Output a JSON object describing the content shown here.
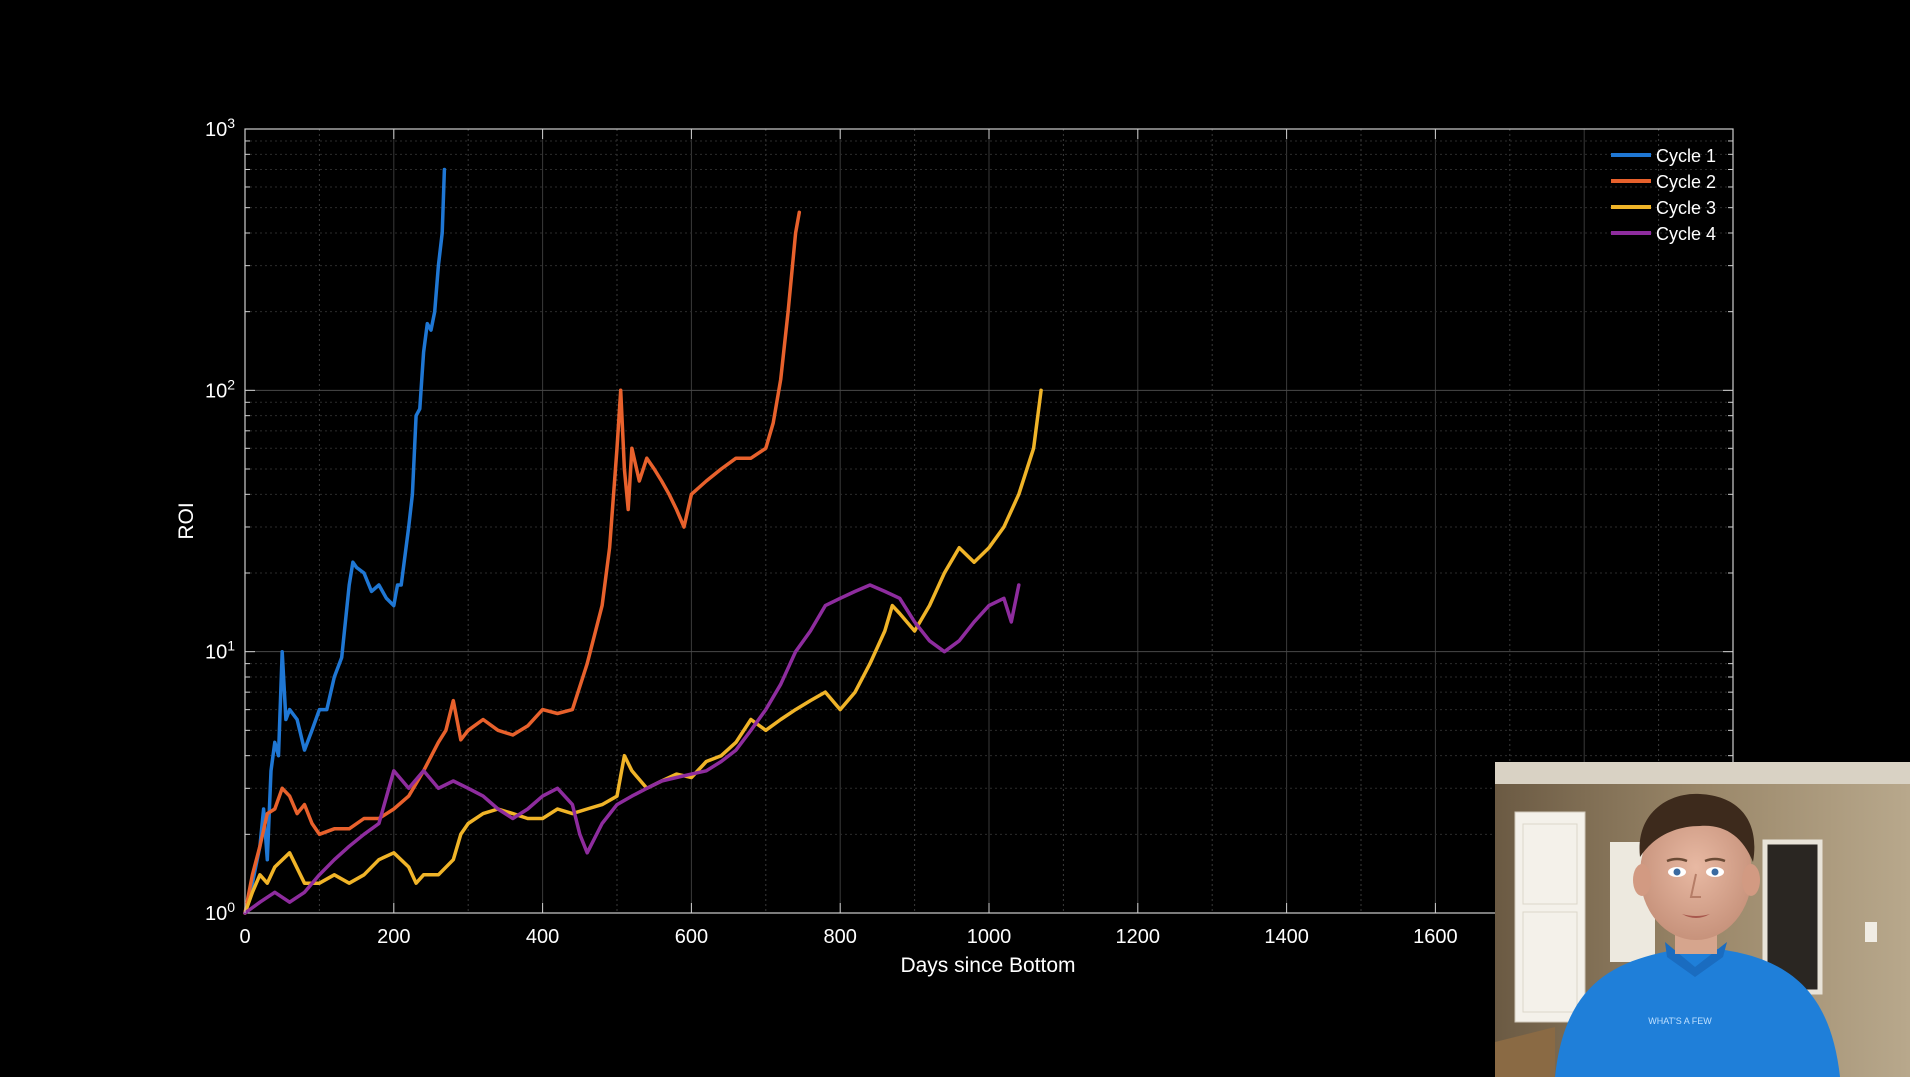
{
  "chart_data": {
    "type": "line",
    "title": "",
    "xlabel": "Days since Bottom",
    "ylabel": "ROI",
    "xlim": [
      0,
      2000
    ],
    "ylim": [
      1,
      1000
    ],
    "yscale": "log",
    "grid": true,
    "legend_position": "top-right",
    "x_ticks": [
      0,
      200,
      400,
      600,
      800,
      1000,
      1200,
      1400,
      1600
    ],
    "y_ticks": [
      {
        "base": "10",
        "exp": "0",
        "value": 1
      },
      {
        "base": "10",
        "exp": "1",
        "value": 10
      },
      {
        "base": "10",
        "exp": "2",
        "value": 100
      },
      {
        "base": "10",
        "exp": "3",
        "value": 1000
      }
    ],
    "series": [
      {
        "name": "Cycle 1",
        "color": "#1f77d4",
        "x": [
          0,
          10,
          20,
          25,
          30,
          35,
          40,
          45,
          50,
          55,
          60,
          70,
          80,
          90,
          100,
          110,
          120,
          130,
          140,
          145,
          150,
          160,
          170,
          180,
          190,
          200,
          205,
          210,
          220,
          225,
          230,
          235,
          240,
          245,
          250,
          255,
          260,
          265,
          268
        ],
        "y": [
          1.0,
          1.3,
          1.8,
          2.5,
          1.6,
          3.5,
          4.5,
          4.0,
          10.0,
          5.5,
          6.0,
          5.5,
          4.2,
          5.0,
          6.0,
          6.0,
          8.0,
          9.5,
          18,
          22,
          21,
          20,
          17,
          18,
          16,
          15,
          18,
          18,
          30,
          40,
          80,
          85,
          140,
          180,
          170,
          200,
          300,
          400,
          700
        ]
      },
      {
        "name": "Cycle 2",
        "color": "#e8612c",
        "x": [
          0,
          10,
          20,
          30,
          40,
          50,
          60,
          70,
          80,
          90,
          100,
          120,
          140,
          160,
          180,
          200,
          220,
          240,
          260,
          270,
          280,
          290,
          300,
          320,
          340,
          360,
          380,
          400,
          420,
          440,
          460,
          480,
          490,
          500,
          505,
          510,
          515,
          520,
          530,
          540,
          550,
          560,
          570,
          580,
          590,
          600,
          620,
          640,
          660,
          680,
          700,
          710,
          720,
          730,
          740,
          745
        ],
        "y": [
          1.0,
          1.4,
          1.8,
          2.4,
          2.5,
          3.0,
          2.8,
          2.4,
          2.6,
          2.2,
          2.0,
          2.1,
          2.1,
          2.3,
          2.3,
          2.5,
          2.8,
          3.5,
          4.5,
          5.0,
          6.5,
          4.6,
          5.0,
          5.5,
          5.0,
          4.8,
          5.2,
          6.0,
          5.8,
          6.0,
          9.0,
          15,
          25,
          60,
          100,
          50,
          35,
          60,
          45,
          55,
          50,
          45,
          40,
          35,
          30,
          40,
          45,
          50,
          55,
          55,
          60,
          75,
          110,
          200,
          400,
          480
        ]
      },
      {
        "name": "Cycle 3",
        "color": "#f0b428",
        "x": [
          0,
          10,
          20,
          30,
          40,
          60,
          80,
          100,
          120,
          140,
          160,
          180,
          200,
          220,
          230,
          240,
          260,
          280,
          290,
          300,
          320,
          340,
          360,
          380,
          400,
          420,
          440,
          460,
          480,
          500,
          510,
          520,
          540,
          560,
          580,
          600,
          620,
          640,
          660,
          680,
          700,
          720,
          740,
          760,
          780,
          800,
          820,
          840,
          860,
          870,
          880,
          900,
          920,
          940,
          960,
          980,
          1000,
          1020,
          1040,
          1060,
          1070
        ],
        "y": [
          1.0,
          1.2,
          1.4,
          1.3,
          1.5,
          1.7,
          1.3,
          1.3,
          1.4,
          1.3,
          1.4,
          1.6,
          1.7,
          1.5,
          1.3,
          1.4,
          1.4,
          1.6,
          2.0,
          2.2,
          2.4,
          2.5,
          2.4,
          2.3,
          2.3,
          2.5,
          2.4,
          2.5,
          2.6,
          2.8,
          4.0,
          3.5,
          3.0,
          3.2,
          3.4,
          3.3,
          3.8,
          4.0,
          4.5,
          5.5,
          5.0,
          5.5,
          6.0,
          6.5,
          7.0,
          6.0,
          7.0,
          9.0,
          12,
          15,
          14,
          12,
          15,
          20,
          25,
          22,
          25,
          30,
          40,
          60,
          100
        ]
      },
      {
        "name": "Cycle 4",
        "color": "#8e2c9e",
        "x": [
          0,
          20,
          40,
          60,
          80,
          100,
          120,
          140,
          160,
          180,
          200,
          220,
          240,
          260,
          280,
          300,
          320,
          340,
          360,
          380,
          400,
          420,
          440,
          450,
          460,
          480,
          500,
          520,
          540,
          560,
          580,
          600,
          620,
          640,
          660,
          680,
          700,
          720,
          740,
          760,
          780,
          800,
          820,
          840,
          860,
          880,
          900,
          920,
          940,
          960,
          980,
          1000,
          1020,
          1030,
          1040
        ],
        "y": [
          1.0,
          1.1,
          1.2,
          1.1,
          1.2,
          1.4,
          1.6,
          1.8,
          2.0,
          2.2,
          3.5,
          3.0,
          3.5,
          3.0,
          3.2,
          3.0,
          2.8,
          2.5,
          2.3,
          2.5,
          2.8,
          3.0,
          2.6,
          2.0,
          1.7,
          2.2,
          2.6,
          2.8,
          3.0,
          3.2,
          3.3,
          3.4,
          3.5,
          3.8,
          4.2,
          5.0,
          6.0,
          7.5,
          10,
          12,
          15,
          16,
          17,
          18,
          17,
          16,
          13,
          11,
          10,
          11,
          13,
          15,
          16,
          13,
          18
        ]
      }
    ]
  },
  "webcam": {
    "shirt_text": "WHAT'S A FEW"
  }
}
